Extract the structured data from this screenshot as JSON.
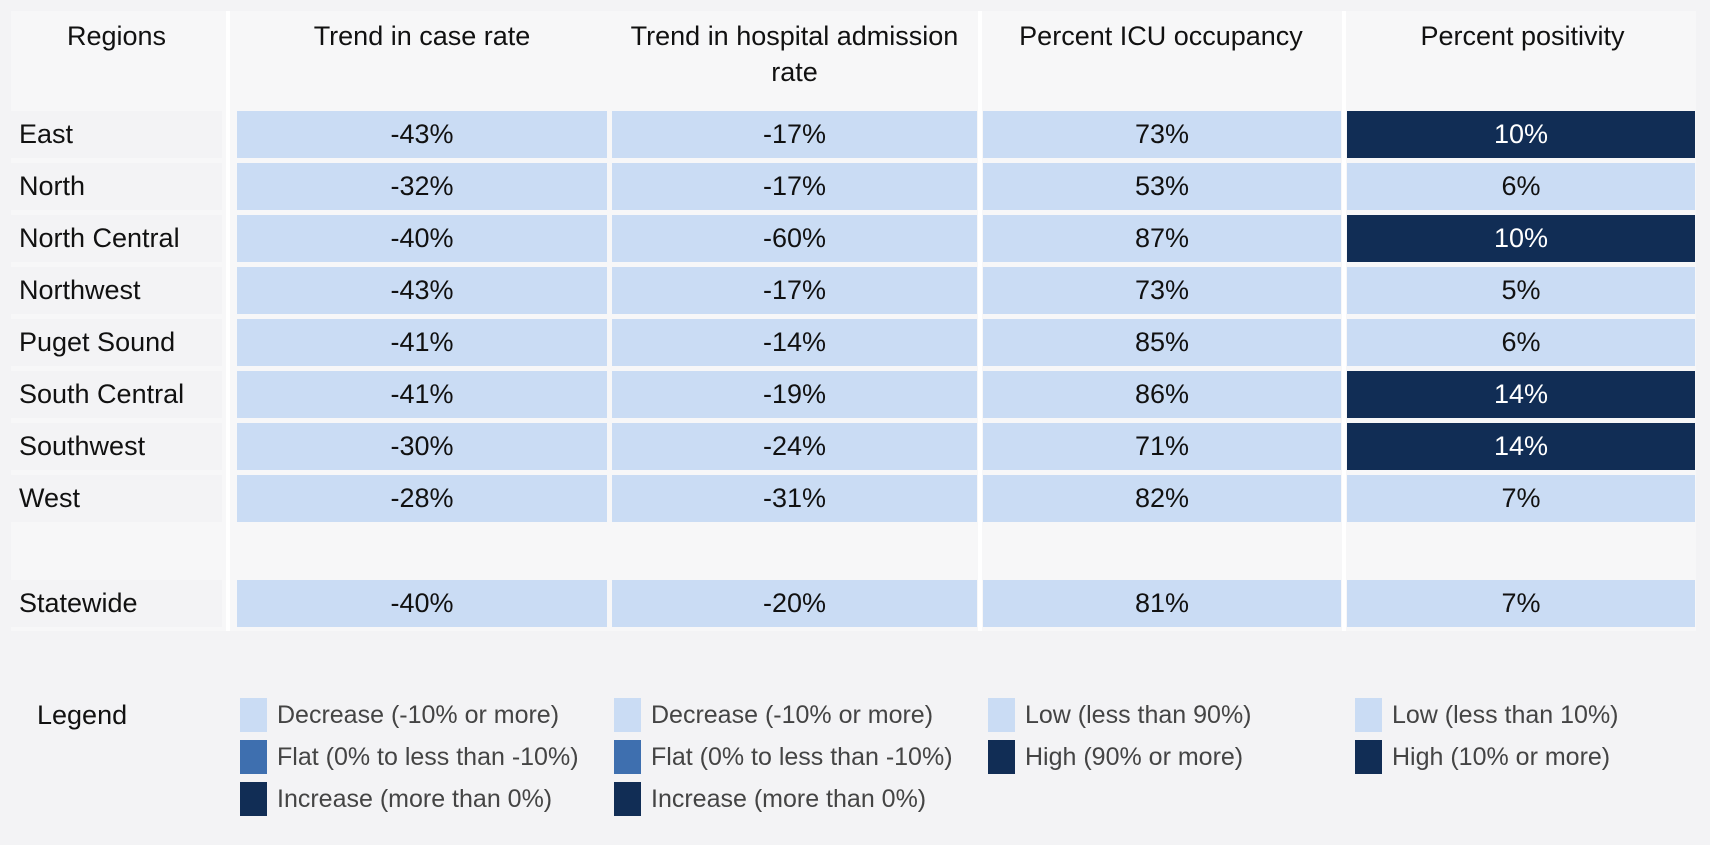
{
  "colors": {
    "light": "#cadcf4",
    "mid": "#3e6faf",
    "dark": "#112d55",
    "light_text": "#111111",
    "dark_text": "#ffffff"
  },
  "headers": {
    "regions": "Regions",
    "case_rate": "Trend in case rate",
    "hospital_rate": "Trend in hospital admission rate",
    "icu": "Percent ICU occupancy",
    "positivity": "Percent positivity"
  },
  "legend_title": "Legend",
  "chart_data": {
    "type": "table",
    "columns": [
      "Regions",
      "Trend in case rate",
      "Trend in hospital admission rate",
      "Percent ICU occupancy",
      "Percent positivity"
    ],
    "rows": [
      {
        "region": "East",
        "case_rate": "-43%",
        "hospital_rate": "-17%",
        "icu": "73%",
        "positivity": "10%",
        "positivity_level": "high"
      },
      {
        "region": "North",
        "case_rate": "-32%",
        "hospital_rate": "-17%",
        "icu": "53%",
        "positivity": "6%",
        "positivity_level": "low"
      },
      {
        "region": "North Central",
        "case_rate": "-40%",
        "hospital_rate": "-60%",
        "icu": "87%",
        "positivity": "10%",
        "positivity_level": "high"
      },
      {
        "region": "Northwest",
        "case_rate": "-43%",
        "hospital_rate": "-17%",
        "icu": "73%",
        "positivity": "5%",
        "positivity_level": "low"
      },
      {
        "region": "Puget Sound",
        "case_rate": "-41%",
        "hospital_rate": "-14%",
        "icu": "85%",
        "positivity": "6%",
        "positivity_level": "low"
      },
      {
        "region": "South Central",
        "case_rate": "-41%",
        "hospital_rate": "-19%",
        "icu": "86%",
        "positivity": "14%",
        "positivity_level": "high"
      },
      {
        "region": "Southwest",
        "case_rate": "-30%",
        "hospital_rate": "-24%",
        "icu": "71%",
        "positivity": "14%",
        "positivity_level": "high"
      },
      {
        "region": "West",
        "case_rate": "-28%",
        "hospital_rate": "-31%",
        "icu": "82%",
        "positivity": "7%",
        "positivity_level": "low"
      }
    ],
    "statewide": {
      "region": "Statewide",
      "case_rate": "-40%",
      "hospital_rate": "-20%",
      "icu": "81%",
      "positivity": "7%",
      "positivity_level": "low"
    }
  },
  "legend": {
    "case_rate": [
      {
        "label": "Decrease (-10% or more)",
        "color": "light"
      },
      {
        "label": "Flat (0% to less than -10%)",
        "color": "mid"
      },
      {
        "label": "Increase (more than 0%)",
        "color": "dark"
      }
    ],
    "hospital_rate": [
      {
        "label": "Decrease (-10% or more)",
        "color": "light"
      },
      {
        "label": "Flat (0% to less than -10%)",
        "color": "mid"
      },
      {
        "label": "Increase (more than 0%)",
        "color": "dark"
      }
    ],
    "icu": [
      {
        "label": "Low (less than 90%)",
        "color": "light"
      },
      {
        "label": "High (90% or more)",
        "color": "dark"
      }
    ],
    "positivity": [
      {
        "label": "Low (less than 10%)",
        "color": "light"
      },
      {
        "label": "High (10% or more)",
        "color": "dark"
      }
    ]
  }
}
